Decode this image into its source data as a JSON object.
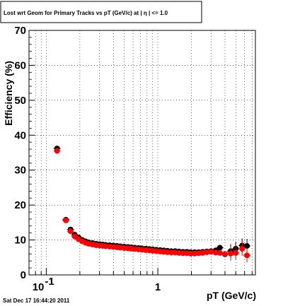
{
  "chart_data": {
    "type": "scatter",
    "title": "Lost wrt Geom for Primary Tracks vs pT (GeV/c) at |  η | <= 1.0",
    "xlabel": "pT (GeV/c)",
    "ylabel": "Efficiency (%)",
    "x_scale": "log",
    "xlim": [
      0.07,
      7.5
    ],
    "ylim": [
      0,
      70
    ],
    "x_tick_labels": [
      "10",
      "1"
    ],
    "x_tick_exponent": "-1",
    "y_ticks": [
      0,
      10,
      20,
      30,
      40,
      50,
      60,
      70
    ],
    "grid": true,
    "series": [
      {
        "color": "#000000",
        "x": [
          0.125,
          0.15,
          0.165,
          0.18,
          0.195,
          0.21,
          0.225,
          0.24,
          0.26,
          0.28,
          0.3,
          0.32,
          0.34,
          0.37,
          0.4,
          0.43,
          0.46,
          0.5,
          0.54,
          0.58,
          0.62,
          0.67,
          0.72,
          0.78,
          0.84,
          0.9,
          0.97,
          1.05,
          1.13,
          1.22,
          1.32,
          1.43,
          1.55,
          1.68,
          1.82,
          1.97,
          2.14,
          2.32,
          2.52,
          2.75,
          3.0,
          3.3,
          3.6,
          4.0,
          4.5,
          5.0,
          5.7,
          6.3
        ],
        "y": [
          36.2,
          15.8,
          13.0,
          11.5,
          10.7,
          10.0,
          9.6,
          9.3,
          9.1,
          8.9,
          8.8,
          8.7,
          8.6,
          8.5,
          8.4,
          8.3,
          8.2,
          8.1,
          8.0,
          7.9,
          7.8,
          7.7,
          7.6,
          7.5,
          7.4,
          7.3,
          7.2,
          7.1,
          7.0,
          6.9,
          6.8,
          6.8,
          6.7,
          6.6,
          6.6,
          6.5,
          6.5,
          6.5,
          6.6,
          6.7,
          6.8,
          7.0,
          7.8,
          5.9,
          6.8,
          7.5,
          8.4,
          8.3
        ]
      },
      {
        "color": "#ff0000",
        "x": [
          0.125,
          0.15,
          0.165,
          0.18,
          0.195,
          0.21,
          0.225,
          0.24,
          0.26,
          0.28,
          0.3,
          0.32,
          0.34,
          0.37,
          0.4,
          0.43,
          0.46,
          0.5,
          0.54,
          0.58,
          0.62,
          0.67,
          0.72,
          0.78,
          0.84,
          0.9,
          0.97,
          1.05,
          1.13,
          1.22,
          1.32,
          1.43,
          1.55,
          1.68,
          1.82,
          1.97,
          2.14,
          2.32,
          2.52,
          2.75,
          3.0,
          3.3,
          3.6,
          4.0,
          4.5,
          5.0,
          5.7,
          6.3
        ],
        "y": [
          35.5,
          15.6,
          12.5,
          11.0,
          10.2,
          9.6,
          9.2,
          8.9,
          8.7,
          8.5,
          8.4,
          8.3,
          8.2,
          8.1,
          8.0,
          7.9,
          7.8,
          7.7,
          7.6,
          7.5,
          7.4,
          7.3,
          7.2,
          7.1,
          7.0,
          6.9,
          6.8,
          6.7,
          6.6,
          6.5,
          6.4,
          6.4,
          6.3,
          6.2,
          6.2,
          6.1,
          6.1,
          6.2,
          6.3,
          6.5,
          6.6,
          6.4,
          6.3,
          6.0,
          6.1,
          6.3,
          7.5,
          5.6
        ]
      }
    ]
  },
  "footer": {
    "timestamp": "Sat Dec 17 16:44:20 2011"
  }
}
